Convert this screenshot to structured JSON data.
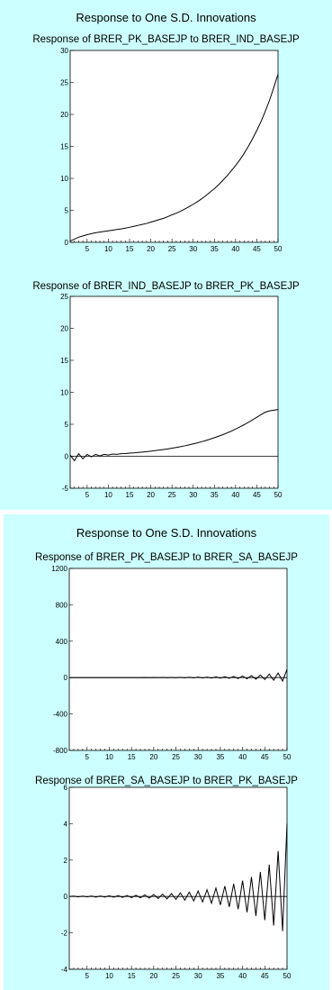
{
  "panels": [
    {
      "title": "Response to One S.D. Innovations"
    },
    {
      "title": "Response to One S.D. Innovations"
    }
  ],
  "chart_data": [
    {
      "type": "line",
      "title": "Response of BRER_PK_BASEJP to BRER_IND_BASEJP",
      "x": [
        1,
        2,
        3,
        4,
        5,
        6,
        7,
        8,
        9,
        10,
        11,
        12,
        13,
        14,
        15,
        16,
        17,
        18,
        19,
        20,
        21,
        22,
        23,
        24,
        25,
        26,
        27,
        28,
        29,
        30,
        31,
        32,
        33,
        34,
        35,
        36,
        37,
        38,
        39,
        40,
        41,
        42,
        43,
        44,
        45,
        46,
        47,
        48,
        49,
        50
      ],
      "series": [
        {
          "values": [
            0.2,
            0.5,
            0.8,
            1.0,
            1.2,
            1.35,
            1.5,
            1.6,
            1.7,
            1.8,
            1.9,
            2.0,
            2.1,
            2.22,
            2.35,
            2.5,
            2.65,
            2.8,
            2.95,
            3.15,
            3.35,
            3.55,
            3.75,
            4.0,
            4.3,
            4.55,
            4.85,
            5.2,
            5.55,
            5.95,
            6.35,
            6.8,
            7.3,
            7.85,
            8.4,
            9.0,
            9.7,
            10.4,
            11.2,
            12.0,
            12.9,
            13.9,
            15.0,
            16.2,
            17.5,
            18.9,
            20.5,
            22.2,
            24.2,
            26.3
          ]
        }
      ],
      "xticks": [
        5,
        10,
        15,
        20,
        25,
        30,
        35,
        40,
        45,
        50
      ],
      "yticks": [
        0,
        5,
        10,
        15,
        20,
        25,
        30
      ],
      "ylim": [
        0,
        30
      ],
      "zero_line": false
    },
    {
      "type": "line",
      "title": "Response of BRER_IND_BASEJP to BRER_PK_BASEJP",
      "x": [
        1,
        2,
        3,
        4,
        5,
        6,
        7,
        8,
        9,
        10,
        11,
        12,
        13,
        14,
        15,
        16,
        17,
        18,
        19,
        20,
        21,
        22,
        23,
        24,
        25,
        26,
        27,
        28,
        29,
        30,
        31,
        32,
        33,
        34,
        35,
        36,
        37,
        38,
        39,
        40,
        41,
        42,
        43,
        44,
        45,
        46,
        47,
        48,
        49,
        50
      ],
      "series": [
        {
          "values": [
            0.2,
            -0.7,
            0.4,
            -0.4,
            0.3,
            -0.1,
            0.3,
            0.05,
            0.3,
            0.2,
            0.35,
            0.3,
            0.4,
            0.42,
            0.5,
            0.52,
            0.6,
            0.65,
            0.72,
            0.8,
            0.88,
            0.96,
            1.05,
            1.15,
            1.26,
            1.37,
            1.5,
            1.63,
            1.78,
            1.94,
            2.1,
            2.28,
            2.47,
            2.68,
            2.9,
            3.13,
            3.38,
            3.65,
            3.94,
            4.25,
            4.58,
            4.93,
            5.3,
            5.7,
            6.1,
            6.5,
            6.9,
            7.1,
            7.2,
            7.3
          ]
        }
      ],
      "xticks": [
        5,
        10,
        15,
        20,
        25,
        30,
        35,
        40,
        45,
        50
      ],
      "yticks": [
        -5,
        0,
        5,
        10,
        15,
        20,
        25
      ],
      "ylim": [
        -5,
        25
      ],
      "zero_line": true
    },
    {
      "type": "line",
      "title": "Response of BRER_PK_BASEJP to BRER_SA_BASEJP",
      "x": [
        1,
        2,
        3,
        4,
        5,
        6,
        7,
        8,
        9,
        10,
        11,
        12,
        13,
        14,
        15,
        16,
        17,
        18,
        19,
        20,
        21,
        22,
        23,
        24,
        25,
        26,
        27,
        28,
        29,
        30,
        31,
        32,
        33,
        34,
        35,
        36,
        37,
        38,
        39,
        40,
        41,
        42,
        43,
        44,
        45,
        46,
        47,
        48,
        49,
        50
      ],
      "series": [
        {
          "values": [
            0,
            0,
            0,
            0,
            0,
            0,
            0,
            0,
            0,
            0,
            0,
            0,
            0,
            0,
            0,
            0,
            0,
            1,
            -1,
            1,
            -1,
            2,
            -2,
            2,
            -2,
            3,
            -3,
            4,
            -3,
            5,
            -4,
            6,
            -5,
            8,
            -6,
            10,
            -8,
            13,
            -10,
            17,
            -13,
            22,
            -17,
            29,
            -22,
            38,
            -29,
            50,
            -38,
            90
          ]
        }
      ],
      "xticks": [
        5,
        10,
        15,
        20,
        25,
        30,
        35,
        40,
        45,
        50
      ],
      "yticks": [
        -800,
        -400,
        0,
        400,
        800,
        1200
      ],
      "ylim": [
        -800,
        1200
      ],
      "zero_line": true
    },
    {
      "type": "line",
      "title": "Response of BRER_SA_BASEJP to BRER_PK_BASEJP",
      "x": [
        1,
        2,
        3,
        4,
        5,
        6,
        7,
        8,
        9,
        10,
        11,
        12,
        13,
        14,
        15,
        16,
        17,
        18,
        19,
        20,
        21,
        22,
        23,
        24,
        25,
        26,
        27,
        28,
        29,
        30,
        31,
        32,
        33,
        34,
        35,
        36,
        37,
        38,
        39,
        40,
        41,
        42,
        43,
        44,
        45,
        46,
        47,
        48,
        49,
        50
      ],
      "series": [
        {
          "values": [
            0,
            0.02,
            -0.02,
            0.02,
            -0.02,
            0.03,
            -0.03,
            0.03,
            -0.03,
            0.04,
            -0.04,
            0.05,
            -0.05,
            0.06,
            -0.06,
            0.07,
            -0.07,
            0.09,
            -0.09,
            0.11,
            -0.11,
            0.13,
            -0.13,
            0.16,
            -0.16,
            0.2,
            -0.2,
            0.24,
            -0.24,
            0.3,
            -0.3,
            0.37,
            -0.37,
            0.46,
            -0.46,
            0.57,
            -0.57,
            0.7,
            -0.7,
            0.87,
            -0.87,
            1.07,
            -1.07,
            1.35,
            -1.3,
            1.75,
            -1.6,
            2.5,
            -1.9,
            4.0
          ]
        }
      ],
      "xticks": [
        5,
        10,
        15,
        20,
        25,
        30,
        35,
        40,
        45,
        50
      ],
      "yticks": [
        -4,
        -2,
        0,
        2,
        4,
        6
      ],
      "ylim": [
        -4,
        6
      ],
      "zero_line": true
    }
  ]
}
